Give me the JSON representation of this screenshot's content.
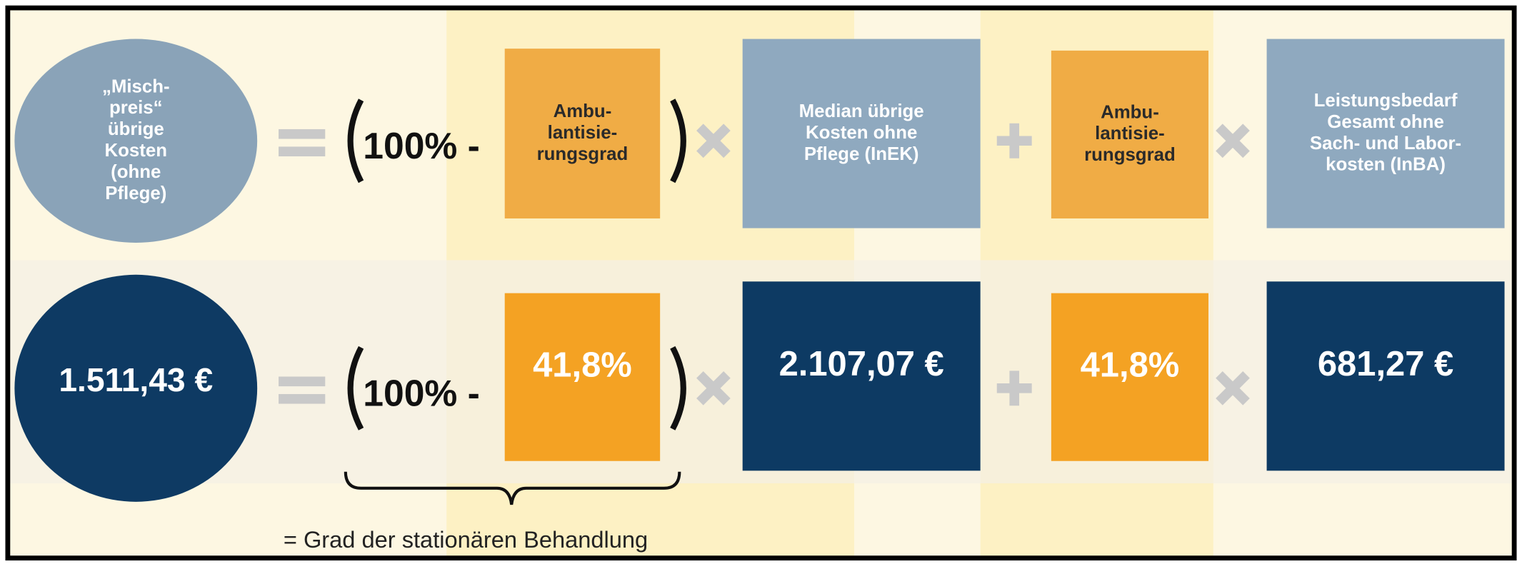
{
  "rows": [
    {
      "circle": [
        "„Misch-",
        "preis“",
        "übrige",
        "Kosten",
        "(ohne",
        "Pflege)"
      ],
      "prefix": "100% -",
      "boxes": [
        [
          "Ambu-",
          "lantisie-",
          "rungsgrad"
        ],
        [
          "Median übrige",
          "Kosten ohne",
          "Pflege (InEK)"
        ],
        [
          "Ambu-",
          "lantisie-",
          "rungsgrad"
        ],
        [
          "Leistungsbedarf",
          "Gesamt ohne",
          "Sach- und Labor-",
          "kosten (InBA)"
        ]
      ]
    },
    {
      "circle": [
        "1.511,43 €"
      ],
      "prefix": "100% -",
      "boxes": [
        [
          "41,8%"
        ],
        [
          "2.107,07 €"
        ],
        [
          "41,8%"
        ],
        [
          "681,27 €"
        ]
      ]
    }
  ],
  "note": "= Grad der stationären Behandlung"
}
